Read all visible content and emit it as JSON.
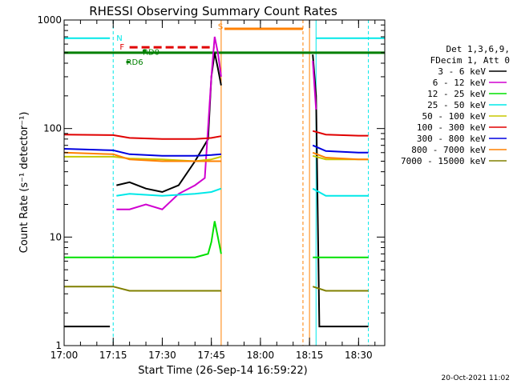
{
  "chart_data": {
    "type": "line",
    "title": "RHESSI Observing Summary Count Rates",
    "xlabel": "Start Time (26-Sep-14 16:59:22)",
    "ylabel": "Count Rate (s⁻¹ detector⁻¹)",
    "xlim": [
      "17:00",
      "18:38"
    ],
    "ylim": [
      1,
      1000
    ],
    "yscale": "log",
    "x_ticks": [
      "17:00",
      "17:15",
      "17:30",
      "17:45",
      "18:00",
      "18:15",
      "18:30"
    ],
    "y_ticks": [
      "1",
      "10",
      "100",
      "1000"
    ],
    "legend": {
      "placement": "right",
      "header": [
        "Det 1,3,6,9,",
        "FDecim 1, Att 0"
      ]
    },
    "series": [
      {
        "name": "3 - 6 keV",
        "color": "#000000",
        "x": [
          "17:00",
          "17:14",
          "17:15",
          "17:16",
          "17:20",
          "17:25",
          "17:30",
          "17:35",
          "17:40",
          "17:44",
          "17:45",
          "17:46",
          "17:47",
          "17:48",
          "18:15",
          "18:16",
          "18:17",
          "18:18",
          "18:25",
          "18:30",
          "18:33"
        ],
        "y": [
          1.5,
          1.5,
          null,
          30,
          32,
          28,
          26,
          30,
          50,
          80,
          300,
          500,
          360,
          250,
          null,
          480,
          200,
          1.5,
          1.5,
          1.5,
          1.5
        ]
      },
      {
        "name": "6 - 12 keV",
        "color": "#d000d0",
        "x": [
          "17:15",
          "17:16",
          "17:20",
          "17:25",
          "17:30",
          "17:35",
          "17:40",
          "17:43",
          "17:45",
          "17:46",
          "17:47",
          "17:48",
          "18:15",
          "18:16",
          "18:17"
        ],
        "y": [
          null,
          18,
          18,
          20,
          18,
          25,
          30,
          35,
          300,
          700,
          500,
          300,
          null,
          420,
          150
        ]
      },
      {
        "name": "12 - 25 keV",
        "color": "#00e000",
        "x": [
          "17:00",
          "17:15",
          "17:20",
          "17:30",
          "17:40",
          "17:44",
          "17:45",
          "17:46",
          "17:47",
          "17:48",
          "18:15",
          "18:16",
          "18:17",
          "18:25",
          "18:30",
          "18:33"
        ],
        "y": [
          6.5,
          6.5,
          6.5,
          6.5,
          6.5,
          7,
          9,
          14,
          10,
          7,
          null,
          6.5,
          6.5,
          6.5,
          6.5,
          6.5
        ]
      },
      {
        "name": "25 - 50 keV",
        "color": "#00e8e8",
        "x": [
          "17:00",
          "17:15",
          "17:16",
          "17:20",
          "17:30",
          "17:40",
          "17:45",
          "17:48",
          "18:15",
          "18:16",
          "18:20",
          "18:30",
          "18:33"
        ],
        "y": [
          null,
          null,
          24,
          25,
          24,
          25,
          26,
          28,
          null,
          28,
          24,
          24,
          24
        ]
      },
      {
        "name": "50 - 100 keV",
        "color": "#c8c800",
        "x": [
          "17:00",
          "17:15",
          "17:20",
          "17:30",
          "17:40",
          "17:45",
          "17:48",
          "18:15",
          "18:16",
          "18:20",
          "18:30",
          "18:33"
        ],
        "y": [
          55,
          55,
          53,
          52,
          50,
          52,
          55,
          null,
          56,
          52,
          52,
          52
        ]
      },
      {
        "name": "100 - 300 keV",
        "color": "#e00000",
        "x": [
          "17:00",
          "17:15",
          "17:20",
          "17:30",
          "17:40",
          "17:45",
          "17:48",
          "18:15",
          "18:16",
          "18:20",
          "18:30",
          "18:33"
        ],
        "y": [
          88,
          87,
          82,
          80,
          80,
          82,
          85,
          null,
          95,
          88,
          86,
          86
        ]
      },
      {
        "name": "300 - 800 keV",
        "color": "#0000e0",
        "x": [
          "17:00",
          "17:15",
          "17:20",
          "17:30",
          "17:40",
          "17:45",
          "17:48",
          "18:15",
          "18:16",
          "18:20",
          "18:30",
          "18:33"
        ],
        "y": [
          65,
          63,
          58,
          56,
          56,
          57,
          58,
          null,
          70,
          62,
          60,
          60
        ]
      },
      {
        "name": "800 - 7000 keV",
        "color": "#ff8000",
        "x": [
          "17:00",
          "17:15",
          "17:20",
          "17:30",
          "17:40",
          "17:45",
          "17:48",
          "18:15",
          "18:16",
          "18:20",
          "18:30",
          "18:33"
        ],
        "y": [
          60,
          58,
          52,
          50,
          50,
          50,
          50,
          null,
          60,
          54,
          52,
          52
        ]
      },
      {
        "name": "7000 - 15000 keV",
        "color": "#808000",
        "x": [
          "17:00",
          "17:15",
          "17:20",
          "17:30",
          "17:40",
          "17:45",
          "17:48",
          "18:15",
          "18:16",
          "18:20",
          "18:30",
          "18:33"
        ],
        "y": [
          3.5,
          3.5,
          3.2,
          3.2,
          3.2,
          3.2,
          3.2,
          null,
          3.5,
          3.2,
          3.2,
          3.2
        ]
      }
    ],
    "annotations": [
      {
        "text": "N",
        "color": "#00e8e8"
      },
      {
        "text": "F",
        "color": "#e00000"
      },
      {
        "text": "RD0",
        "color": "#008000"
      },
      {
        "text": "RD6",
        "color": "#008000"
      },
      {
        "text": "S",
        "color": "#ff8000"
      }
    ],
    "footer": "20-Oct-2021 11:02"
  }
}
